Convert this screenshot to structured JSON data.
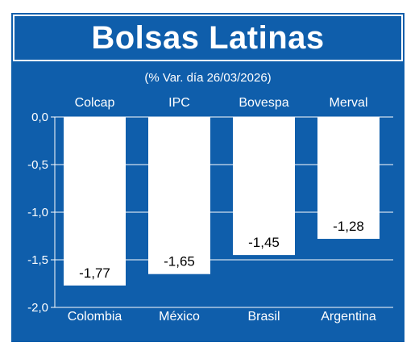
{
  "header": {
    "title": "Bolsas Latinas",
    "subtitle": "(% Var. día 26/03/2026)"
  },
  "colors": {
    "background": "#0f5eab",
    "bars": "#ffffff",
    "text": "#ffffff",
    "label_text": "#000000"
  },
  "chart_data": {
    "type": "bar",
    "title": "Bolsas Latinas",
    "subtitle": "(% Var. día 26/03/2026)",
    "indices": [
      "Colcap",
      "IPC",
      "Bovespa",
      "Merval"
    ],
    "categories": [
      "Colombia",
      "México",
      "Brasil",
      "Argentina"
    ],
    "values": [
      -1.77,
      -1.65,
      -1.45,
      -1.28
    ],
    "value_labels": [
      "-1,77",
      "-1,65",
      "-1,45",
      "-1,28"
    ],
    "ylim": [
      -2.0,
      0.0
    ],
    "yticks": [
      0.0,
      -0.5,
      -1.0,
      -1.5,
      -2.0
    ],
    "ytick_labels": [
      "0,0",
      "-0,5",
      "-1,0",
      "-1,5",
      "-2,0"
    ],
    "grid": true,
    "xlabel": "",
    "ylabel": ""
  }
}
